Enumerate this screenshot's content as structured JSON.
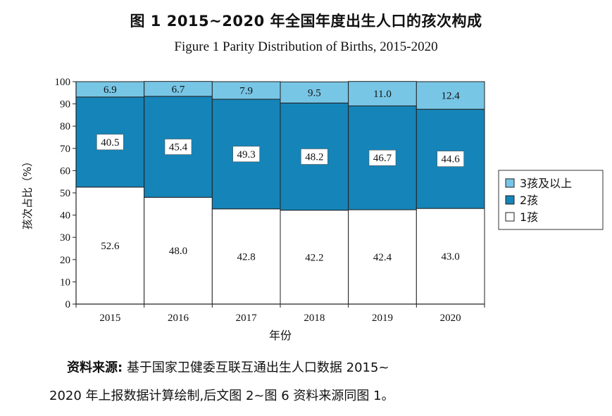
{
  "title_cn": "图 1 2015~2020 年全国年度出生人口的孩次构成",
  "title_en": "Figure 1 Parity Distribution of Births, 2015-2020",
  "colors": {
    "third": "#78c6e6",
    "second": "#1584b8",
    "first": "#ffffff",
    "border": "#222222"
  },
  "chart_data": {
    "type": "bar",
    "stacked": true,
    "categories": [
      "2015",
      "2016",
      "2017",
      "2018",
      "2019",
      "2020"
    ],
    "series": [
      {
        "name": "1孩",
        "values": [
          52.6,
          48.0,
          42.8,
          42.2,
          42.4,
          43.0
        ]
      },
      {
        "name": "2孩",
        "values": [
          40.5,
          45.4,
          49.3,
          48.2,
          46.7,
          44.6
        ]
      },
      {
        "name": "3孩及以上",
        "values": [
          6.9,
          6.7,
          7.9,
          9.5,
          11.0,
          12.4
        ]
      }
    ],
    "xlabel": "年份",
    "ylabel": "孩次占比（%）",
    "ylim": [
      0,
      100
    ],
    "yticks": [
      0,
      10,
      20,
      30,
      40,
      50,
      60,
      70,
      80,
      90,
      100
    ],
    "legend": [
      "3孩及以上",
      "2孩",
      "1孩"
    ],
    "legend_position": "right"
  },
  "source": {
    "label": "资料来源:",
    "text_line1": "基于国家卫健委互联互通出生人口数据 2015~",
    "text_line2": "2020 年上报数据计算绘制,后文图 2~图 6 资料来源同图 1。"
  }
}
